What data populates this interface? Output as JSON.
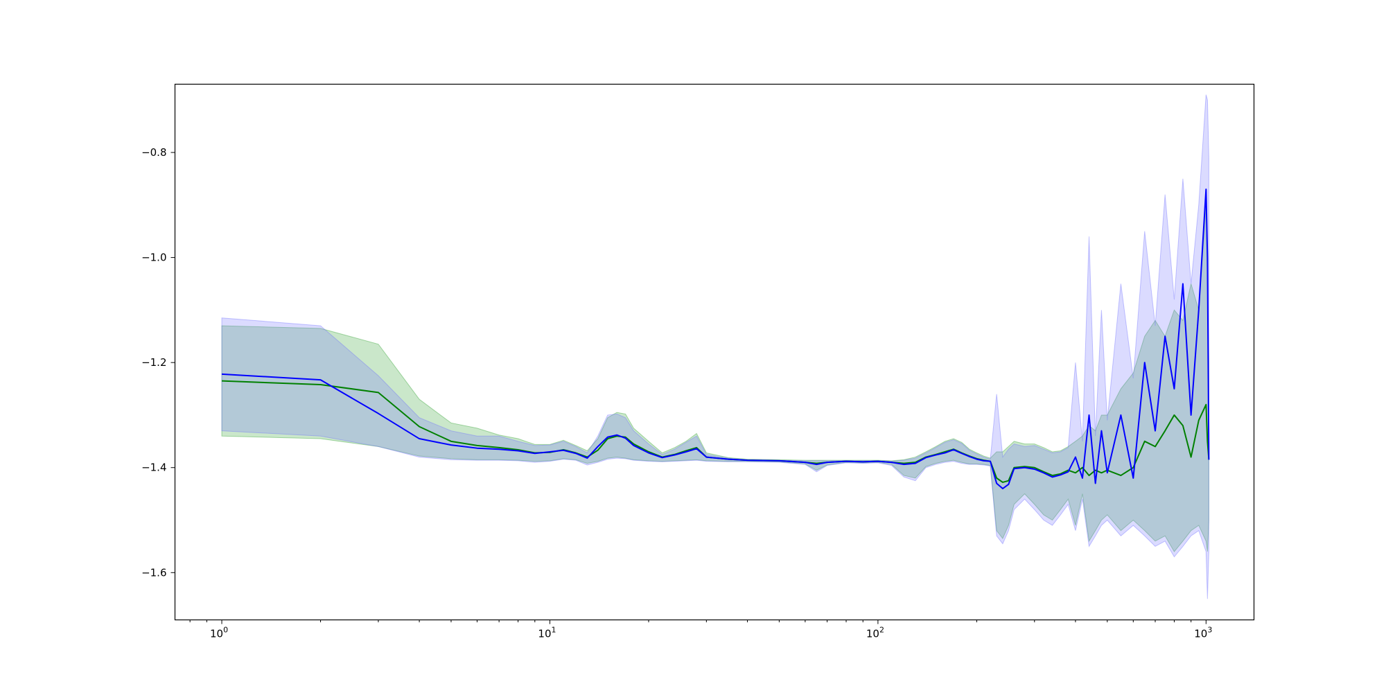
{
  "chart_data": {
    "type": "line",
    "title": "",
    "xlabel": "",
    "ylabel": "",
    "x_scale": "log",
    "xlim": [
      0.72,
      1400
    ],
    "ylim": [
      -1.69,
      -0.67
    ],
    "x_ticks": [
      {
        "value": 1,
        "base": "10",
        "exp": "0"
      },
      {
        "value": 10,
        "base": "10",
        "exp": "1"
      },
      {
        "value": 100,
        "base": "10",
        "exp": "2"
      },
      {
        "value": 1000,
        "base": "10",
        "exp": "3"
      }
    ],
    "y_ticks": [
      {
        "value": -0.8,
        "label": "−0.8"
      },
      {
        "value": -1.0,
        "label": "−1.0"
      },
      {
        "value": -1.2,
        "label": "−1.2"
      },
      {
        "value": -1.4,
        "label": "−1.4"
      },
      {
        "value": -1.6,
        "label": "−1.6"
      }
    ],
    "grid": false,
    "legend": "none",
    "series": [
      {
        "color": "#008000",
        "band_color": "#2ca02c",
        "x": [
          1,
          2,
          3,
          4,
          5,
          6,
          7,
          8,
          9,
          10,
          11,
          12,
          13,
          14,
          15,
          16,
          17,
          18,
          20,
          22,
          24,
          26,
          28,
          30,
          35,
          40,
          50,
          60,
          65,
          70,
          80,
          90,
          100,
          110,
          120,
          130,
          140,
          150,
          160,
          170,
          180,
          190,
          200,
          210,
          220,
          230,
          240,
          250,
          260,
          280,
          300,
          320,
          340,
          360,
          380,
          400,
          420,
          440,
          460,
          480,
          500,
          550,
          600,
          650,
          700,
          750,
          800,
          850,
          900,
          950,
          1000,
          1010,
          1020
        ],
        "y": [
          -1.235,
          -1.242,
          -1.257,
          -1.322,
          -1.35,
          -1.358,
          -1.362,
          -1.366,
          -1.372,
          -1.371,
          -1.366,
          -1.372,
          -1.38,
          -1.367,
          -1.345,
          -1.34,
          -1.342,
          -1.355,
          -1.37,
          -1.38,
          -1.375,
          -1.368,
          -1.362,
          -1.38,
          -1.384,
          -1.386,
          -1.387,
          -1.39,
          -1.392,
          -1.39,
          -1.388,
          -1.389,
          -1.388,
          -1.39,
          -1.392,
          -1.39,
          -1.38,
          -1.375,
          -1.37,
          -1.365,
          -1.372,
          -1.378,
          -1.383,
          -1.386,
          -1.388,
          -1.42,
          -1.428,
          -1.425,
          -1.4,
          -1.398,
          -1.4,
          -1.408,
          -1.415,
          -1.412,
          -1.405,
          -1.41,
          -1.4,
          -1.415,
          -1.405,
          -1.41,
          -1.405,
          -1.415,
          -1.4,
          -1.35,
          -1.36,
          -1.33,
          -1.3,
          -1.32,
          -1.38,
          -1.31,
          -1.28,
          -1.35,
          -1.385
        ],
        "lower": [
          -1.34,
          -1.345,
          -1.36,
          -1.378,
          -1.383,
          -1.385,
          -1.385,
          -1.386,
          -1.388,
          -1.387,
          -1.383,
          -1.385,
          -1.392,
          -1.388,
          -1.382,
          -1.38,
          -1.382,
          -1.385,
          -1.387,
          -1.388,
          -1.387,
          -1.386,
          -1.385,
          -1.387,
          -1.388,
          -1.388,
          -1.389,
          -1.393,
          -1.405,
          -1.395,
          -1.39,
          -1.391,
          -1.39,
          -1.394,
          -1.415,
          -1.42,
          -1.398,
          -1.392,
          -1.388,
          -1.386,
          -1.39,
          -1.393,
          -1.393,
          -1.394,
          -1.396,
          -1.52,
          -1.535,
          -1.51,
          -1.47,
          -1.45,
          -1.47,
          -1.49,
          -1.5,
          -1.48,
          -1.46,
          -1.51,
          -1.45,
          -1.54,
          -1.52,
          -1.5,
          -1.49,
          -1.52,
          -1.5,
          -1.52,
          -1.54,
          -1.53,
          -1.56,
          -1.54,
          -1.52,
          -1.51,
          -1.54,
          -1.56,
          -1.5
        ],
        "upper": [
          -1.13,
          -1.135,
          -1.165,
          -1.27,
          -1.315,
          -1.325,
          -1.338,
          -1.345,
          -1.356,
          -1.356,
          -1.348,
          -1.358,
          -1.368,
          -1.345,
          -1.305,
          -1.295,
          -1.298,
          -1.325,
          -1.35,
          -1.372,
          -1.362,
          -1.35,
          -1.335,
          -1.372,
          -1.381,
          -1.384,
          -1.385,
          -1.386,
          -1.386,
          -1.386,
          -1.386,
          -1.386,
          -1.386,
          -1.387,
          -1.385,
          -1.38,
          -1.37,
          -1.36,
          -1.35,
          -1.345,
          -1.352,
          -1.365,
          -1.372,
          -1.378,
          -1.382,
          -1.37,
          -1.37,
          -1.36,
          -1.35,
          -1.355,
          -1.355,
          -1.362,
          -1.37,
          -1.368,
          -1.36,
          -1.35,
          -1.34,
          -1.32,
          -1.33,
          -1.3,
          -1.3,
          -1.25,
          -1.22,
          -1.15,
          -1.12,
          -1.15,
          -1.1,
          -1.12,
          -1.05,
          -1.1,
          -0.9,
          -1.05,
          -1.2
        ]
      },
      {
        "color": "#0000ff",
        "band_color": "#6f6fff",
        "x": [
          1,
          2,
          3,
          4,
          5,
          6,
          7,
          8,
          9,
          10,
          11,
          12,
          13,
          14,
          15,
          16,
          17,
          18,
          20,
          22,
          24,
          26,
          28,
          30,
          35,
          40,
          50,
          60,
          65,
          70,
          80,
          90,
          100,
          110,
          120,
          130,
          140,
          150,
          160,
          170,
          180,
          190,
          200,
          210,
          220,
          230,
          240,
          250,
          260,
          280,
          300,
          320,
          340,
          360,
          380,
          400,
          420,
          440,
          460,
          480,
          500,
          550,
          600,
          650,
          700,
          750,
          800,
          850,
          900,
          950,
          1000,
          1010,
          1020
        ],
        "y": [
          -1.222,
          -1.233,
          -1.297,
          -1.345,
          -1.357,
          -1.363,
          -1.365,
          -1.368,
          -1.373,
          -1.37,
          -1.367,
          -1.373,
          -1.382,
          -1.36,
          -1.342,
          -1.338,
          -1.344,
          -1.358,
          -1.372,
          -1.381,
          -1.376,
          -1.37,
          -1.364,
          -1.38,
          -1.384,
          -1.386,
          -1.387,
          -1.39,
          -1.394,
          -1.39,
          -1.388,
          -1.389,
          -1.388,
          -1.39,
          -1.394,
          -1.392,
          -1.381,
          -1.376,
          -1.372,
          -1.366,
          -1.373,
          -1.379,
          -1.384,
          -1.387,
          -1.388,
          -1.43,
          -1.44,
          -1.432,
          -1.402,
          -1.4,
          -1.403,
          -1.41,
          -1.418,
          -1.414,
          -1.408,
          -1.38,
          -1.42,
          -1.3,
          -1.43,
          -1.33,
          -1.41,
          -1.3,
          -1.42,
          -1.2,
          -1.33,
          -1.15,
          -1.25,
          -1.05,
          -1.3,
          -1.1,
          -0.87,
          -1.0,
          -1.385
        ],
        "lower": [
          -1.33,
          -1.34,
          -1.36,
          -1.38,
          -1.385,
          -1.386,
          -1.386,
          -1.387,
          -1.39,
          -1.388,
          -1.384,
          -1.386,
          -1.395,
          -1.39,
          -1.384,
          -1.382,
          -1.383,
          -1.386,
          -1.388,
          -1.389,
          -1.388,
          -1.387,
          -1.386,
          -1.388,
          -1.389,
          -1.389,
          -1.39,
          -1.394,
          -1.408,
          -1.396,
          -1.391,
          -1.392,
          -1.391,
          -1.396,
          -1.418,
          -1.425,
          -1.4,
          -1.394,
          -1.39,
          -1.388,
          -1.392,
          -1.394,
          -1.394,
          -1.395,
          -1.397,
          -1.53,
          -1.545,
          -1.52,
          -1.48,
          -1.46,
          -1.48,
          -1.5,
          -1.51,
          -1.49,
          -1.47,
          -1.52,
          -1.46,
          -1.55,
          -1.53,
          -1.51,
          -1.5,
          -1.53,
          -1.51,
          -1.53,
          -1.55,
          -1.54,
          -1.57,
          -1.55,
          -1.53,
          -1.52,
          -1.56,
          -1.65,
          -1.56
        ],
        "upper": [
          -1.115,
          -1.13,
          -1.225,
          -1.305,
          -1.33,
          -1.34,
          -1.34,
          -1.35,
          -1.358,
          -1.357,
          -1.35,
          -1.36,
          -1.372,
          -1.34,
          -1.3,
          -1.298,
          -1.305,
          -1.33,
          -1.355,
          -1.375,
          -1.365,
          -1.352,
          -1.34,
          -1.375,
          -1.382,
          -1.385,
          -1.386,
          -1.387,
          -1.387,
          -1.387,
          -1.387,
          -1.387,
          -1.387,
          -1.388,
          -1.386,
          -1.382,
          -1.372,
          -1.362,
          -1.352,
          -1.347,
          -1.354,
          -1.367,
          -1.374,
          -1.38,
          -1.384,
          -1.26,
          -1.38,
          -1.365,
          -1.355,
          -1.36,
          -1.358,
          -1.365,
          -1.372,
          -1.37,
          -1.362,
          -1.2,
          -1.35,
          -0.96,
          -1.34,
          -1.1,
          -1.31,
          -1.05,
          -1.23,
          -0.95,
          -1.13,
          -0.88,
          -1.08,
          -0.85,
          -1.05,
          -0.9,
          -0.69,
          -0.7,
          -0.81
        ]
      }
    ]
  }
}
